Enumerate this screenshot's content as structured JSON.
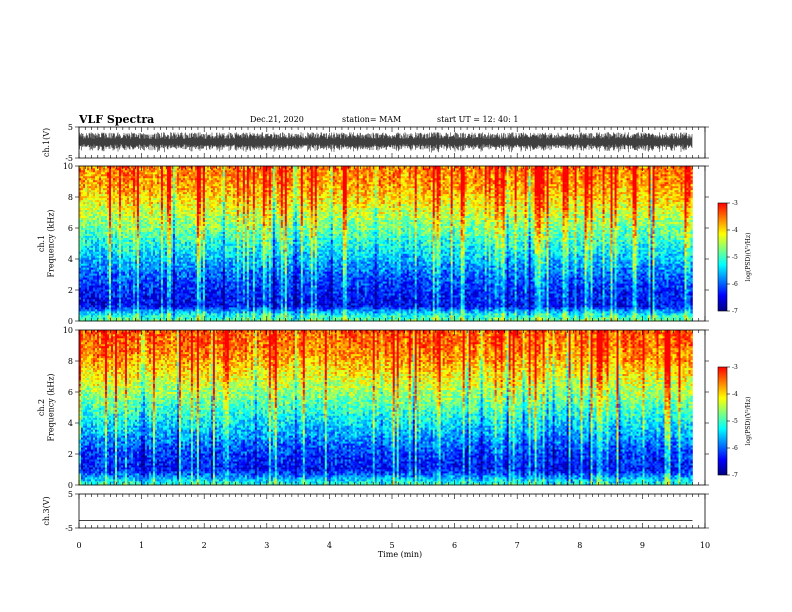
{
  "header": {
    "title": "VLF Spectra",
    "date": "Dec.21, 2020",
    "station": "station= MAM",
    "start": "start UT =  12: 40: 1"
  },
  "colors": {
    "colormap": [
      "#00007f",
      "#0000ff",
      "#007fff",
      "#00ffff",
      "#7fff7f",
      "#ffff00",
      "#ff7f00",
      "#ff0000",
      "#ffffff"
    ],
    "waveform": "#000000",
    "axes": "#000000"
  },
  "chart_data": [
    {
      "type": "line",
      "panel": "ch1-waveform",
      "ylabel": "ch.1(V)",
      "ylim": [
        -5,
        5
      ],
      "yticks": [
        "5",
        "-5"
      ],
      "xlim": [
        0,
        10
      ],
      "data_end_min": 9.8,
      "amplitude_envelope_V": [
        -3.3,
        3.3
      ]
    },
    {
      "type": "heatmap",
      "panel": "ch1-spectrogram",
      "ylabel": "ch.1\nFrequency (kHz)",
      "ylim": [
        0,
        10
      ],
      "yticks": [
        "0",
        "2",
        "4",
        "6",
        "8",
        "10"
      ],
      "xlim": [
        0,
        10
      ],
      "data_end_min": 9.8,
      "colorbar": {
        "label": "log(PSD)(V²/Hz)",
        "ticks": [
          "-3",
          "-4",
          "-5",
          "-6",
          "-7"
        ],
        "range": [
          -7,
          -3
        ]
      },
      "mean_log_psd_profile": [
        {
          "freq_khz": 0.0,
          "log_psd": -4.8
        },
        {
          "freq_khz": 0.5,
          "log_psd": -5.4
        },
        {
          "freq_khz": 1.0,
          "log_psd": -6.5
        },
        {
          "freq_khz": 2.0,
          "log_psd": -6.3
        },
        {
          "freq_khz": 3.0,
          "log_psd": -6.0
        },
        {
          "freq_khz": 4.0,
          "log_psd": -5.6
        },
        {
          "freq_khz": 5.0,
          "log_psd": -5.2
        },
        {
          "freq_khz": 6.0,
          "log_psd": -4.8
        },
        {
          "freq_khz": 7.0,
          "log_psd": -4.4
        },
        {
          "freq_khz": 8.0,
          "log_psd": -4.0
        },
        {
          "freq_khz": 9.0,
          "log_psd": -3.7
        },
        {
          "freq_khz": 10.0,
          "log_psd": -3.6
        }
      ]
    },
    {
      "type": "heatmap",
      "panel": "ch2-spectrogram",
      "ylabel": "ch.2\nFrequency (kHz)",
      "ylim": [
        0,
        10
      ],
      "yticks": [
        "0",
        "2",
        "4",
        "6",
        "8",
        "10"
      ],
      "xlim": [
        0,
        10
      ],
      "data_end_min": 9.8,
      "colorbar": {
        "label": "log(PSD)(V²/Hz)",
        "ticks": [
          "-3",
          "-4",
          "-5",
          "-6",
          "-7"
        ],
        "range": [
          -7,
          -3
        ]
      },
      "mean_log_psd_profile": [
        {
          "freq_khz": 0.0,
          "log_psd": -5.0
        },
        {
          "freq_khz": 1.0,
          "log_psd": -6.4
        },
        {
          "freq_khz": 2.0,
          "log_psd": -6.2
        },
        {
          "freq_khz": 3.0,
          "log_psd": -5.8
        },
        {
          "freq_khz": 4.0,
          "log_psd": -5.4
        },
        {
          "freq_khz": 5.0,
          "log_psd": -5.0
        },
        {
          "freq_khz": 6.0,
          "log_psd": -4.6
        },
        {
          "freq_khz": 7.0,
          "log_psd": -4.2
        },
        {
          "freq_khz": 8.0,
          "log_psd": -3.8
        },
        {
          "freq_khz": 9.0,
          "log_psd": -3.5
        },
        {
          "freq_khz": 10.0,
          "log_psd": -3.4
        }
      ]
    },
    {
      "type": "line",
      "panel": "ch3-waveform",
      "ylabel": "ch.3(V)",
      "ylim": [
        -5,
        5
      ],
      "yticks": [
        "5",
        "-5"
      ],
      "xlim": [
        0,
        10
      ],
      "xlabel": "Time (min)",
      "xticks": [
        "0",
        "1",
        "2",
        "3",
        "4",
        "5",
        "6",
        "7",
        "8",
        "9",
        "10"
      ],
      "data_end_min": 9.8,
      "constant_value_V": -2.8
    }
  ]
}
